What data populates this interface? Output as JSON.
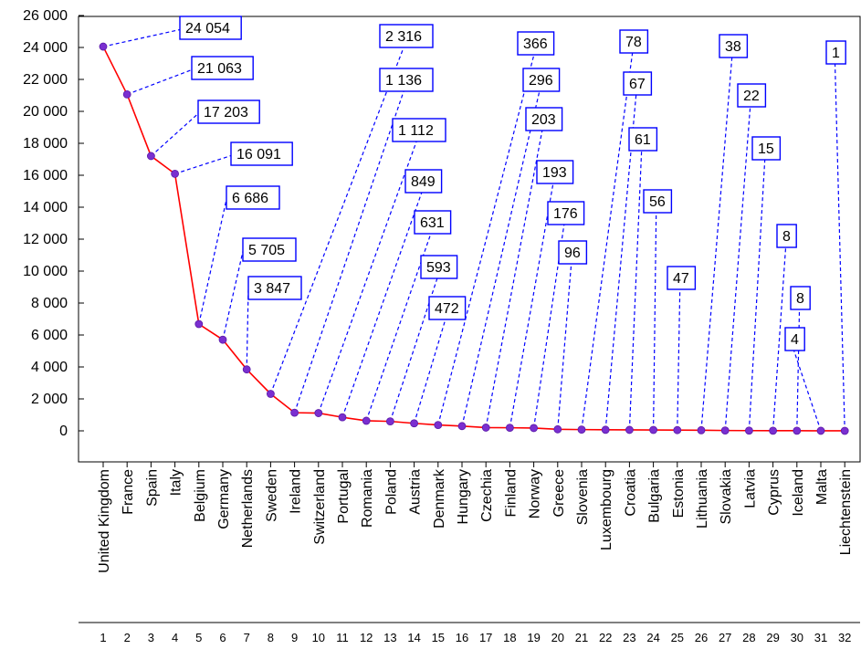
{
  "chart_data": {
    "type": "line",
    "title": "",
    "xlabel": "",
    "ylabel": "",
    "ylim": [
      -2000,
      26000
    ],
    "y_ticks": [
      "0",
      "2 000",
      "4 000",
      "6 000",
      "8 000",
      "10 000",
      "12 000",
      "14 000",
      "16 000",
      "18 000",
      "20 000",
      "22 000",
      "24 000",
      "26 000"
    ],
    "y_tick_values": [
      0,
      2000,
      4000,
      6000,
      8000,
      10000,
      12000,
      14000,
      16000,
      18000,
      20000,
      22000,
      24000,
      26000
    ],
    "grid": false,
    "legend": "none",
    "categories": [
      "United Kingdom",
      "France",
      "Spain",
      "Italy",
      "Belgium",
      "Germany",
      "Netherlands",
      "Sweden",
      "Ireland",
      "Switzerland",
      "Portugal",
      "Romania",
      "Poland",
      "Austria",
      "Denmark",
      "Hungary",
      "Czechia",
      "Finland",
      "Norway",
      "Greece",
      "Slovenia",
      "Luxembourg",
      "Croatia",
      "Bulgaria",
      "Estonia",
      "Lithuania",
      "Slovakia",
      "Latvia",
      "Cyprus",
      "Iceland",
      "Malta",
      "Liechtenstein"
    ],
    "indices": [
      "1",
      "2",
      "3",
      "4",
      "5",
      "6",
      "7",
      "8",
      "9",
      "10",
      "11",
      "12",
      "13",
      "14",
      "15",
      "16",
      "17",
      "18",
      "19",
      "20",
      "21",
      "22",
      "23",
      "24",
      "25",
      "26",
      "27",
      "28",
      "29",
      "30",
      "31",
      "32"
    ],
    "values": [
      24054,
      21063,
      17203,
      16091,
      6686,
      5705,
      3847,
      2316,
      1136,
      1112,
      849,
      631,
      593,
      472,
      366,
      296,
      203,
      193,
      176,
      96,
      78,
      67,
      61,
      56,
      47,
      38,
      22,
      15,
      8,
      8,
      4,
      1
    ],
    "data_labels": [
      "24 054",
      "21 063",
      "17 203",
      "16 091",
      "6 686",
      "5 705",
      "3 847",
      "2 316",
      "1 136",
      "1 112",
      "849",
      "631",
      "593",
      "472",
      "366",
      "296",
      "203",
      "193",
      "176",
      "96",
      "78",
      "67",
      "61",
      "56",
      "47",
      "38",
      "22",
      "15",
      "8",
      "8",
      "4",
      "1"
    ],
    "colors": {
      "line": "#ff0000",
      "marker": "#7a2fd0",
      "label_border": "#0000ff",
      "leader": "#0000ff"
    }
  }
}
